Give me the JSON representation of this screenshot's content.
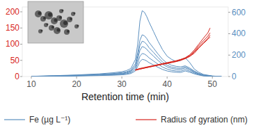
{
  "chart_data": {
    "type": "line",
    "xlabel": "Retention time (min)",
    "xlim": [
      8,
      53.5
    ],
    "xticks": [
      10,
      20,
      30,
      40,
      50
    ],
    "ylim": [
      0,
      215
    ],
    "yticks": [
      0,
      50,
      100,
      150,
      200
    ],
    "y2lim": [
      0,
      650
    ],
    "y2ticks": [
      0,
      200,
      400,
      600
    ],
    "legend": "bottom",
    "series": [
      {
        "name": "Fe (µg L⁻¹)",
        "color": "#5b8fbf",
        "axis": "y2",
        "x": [
          10,
          15,
          20,
          25,
          28,
          30,
          31,
          32,
          33,
          33.5,
          34,
          34.5,
          35,
          35.5,
          36,
          37,
          38,
          39,
          40,
          41,
          42,
          43,
          44,
          45,
          46,
          47,
          48,
          50,
          52
        ],
        "values": [
          2,
          8,
          15,
          25,
          35,
          45,
          55,
          75,
          160,
          300,
          520,
          615,
          600,
          560,
          510,
          420,
          330,
          250,
          190,
          160,
          140,
          150,
          175,
          130,
          70,
          40,
          20,
          5,
          0
        ]
      },
      {
        "color": "#5b8fbf",
        "axis": "y2",
        "x": [
          10,
          15,
          20,
          25,
          28,
          30,
          31,
          32,
          33,
          33.5,
          34,
          34.5,
          35,
          35.5,
          36,
          37,
          38,
          39,
          40,
          41,
          42,
          43,
          44,
          45,
          46,
          47,
          48,
          50,
          52
        ],
        "values": [
          2,
          6,
          12,
          20,
          28,
          36,
          44,
          60,
          120,
          220,
          340,
          390,
          380,
          355,
          320,
          265,
          210,
          160,
          125,
          105,
          95,
          90,
          100,
          80,
          52,
          30,
          15,
          4,
          0
        ]
      },
      {
        "color": "#5b8fbf",
        "axis": "y2",
        "x": [
          10,
          15,
          20,
          25,
          28,
          30,
          31,
          32,
          33,
          33.5,
          34,
          34.5,
          35,
          35.5,
          36,
          37,
          38,
          39,
          40,
          41,
          42,
          43,
          44,
          45,
          46,
          47,
          48,
          50,
          52
        ],
        "values": [
          1,
          5,
          10,
          17,
          24,
          30,
          38,
          52,
          100,
          190,
          290,
          330,
          322,
          300,
          270,
          225,
          178,
          135,
          105,
          88,
          80,
          76,
          90,
          70,
          45,
          26,
          12,
          3,
          0
        ]
      },
      {
        "color": "#5b8fbf",
        "axis": "y2",
        "x": [
          10,
          15,
          20,
          25,
          28,
          30,
          31,
          32,
          33,
          33.5,
          34,
          34.5,
          35,
          35.5,
          36,
          37,
          38,
          39,
          40,
          41,
          42,
          43,
          44,
          45,
          46,
          47,
          48,
          50,
          52
        ],
        "values": [
          1,
          5,
          9,
          15,
          20,
          26,
          32,
          45,
          85,
          160,
          245,
          280,
          272,
          255,
          230,
          190,
          150,
          115,
          90,
          75,
          68,
          65,
          80,
          62,
          40,
          22,
          10,
          3,
          0
        ]
      },
      {
        "color": "#5b8fbf",
        "axis": "y2",
        "x": [
          10,
          15,
          20,
          25,
          28,
          30,
          31,
          32,
          33,
          33.5,
          34,
          34.5,
          35,
          35.5,
          36,
          37,
          38,
          39,
          40,
          41,
          42,
          43,
          44,
          45,
          46,
          47,
          48,
          50,
          52
        ],
        "values": [
          1,
          4,
          7,
          12,
          16,
          21,
          26,
          36,
          68,
          125,
          190,
          215,
          210,
          195,
          175,
          145,
          115,
          88,
          70,
          58,
          52,
          50,
          65,
          50,
          32,
          18,
          8,
          2,
          0
        ]
      },
      {
        "color": "#5b8fbf",
        "axis": "y2",
        "x": [
          10,
          15,
          20,
          25,
          28,
          30,
          31,
          32,
          33,
          33.5,
          34,
          34.5,
          35,
          35.5,
          36,
          37,
          38,
          39,
          40,
          41,
          42,
          43,
          44,
          45,
          46,
          47,
          48,
          50,
          52
        ],
        "values": [
          1,
          3,
          5,
          9,
          12,
          16,
          20,
          28,
          52,
          95,
          140,
          160,
          156,
          145,
          130,
          108,
          86,
          66,
          52,
          44,
          40,
          38,
          52,
          40,
          25,
          14,
          6,
          2,
          0
        ]
      },
      {
        "name": "Radius of gyration (nm)",
        "color": "#d7261e",
        "x": [
          33,
          34,
          35,
          36,
          37,
          38,
          39,
          40,
          41,
          42,
          43,
          44,
          45,
          46,
          47,
          48,
          49,
          49.5
        ],
        "values": [
          20,
          24,
          27,
          30,
          33,
          36,
          39,
          42,
          45,
          48,
          52,
          57,
          65,
          78,
          95,
          110,
          125,
          135
        ]
      },
      {
        "color": "#d7261e",
        "x": [
          33,
          34,
          35,
          36,
          37,
          38,
          39,
          40,
          41,
          42,
          43,
          44,
          45,
          46,
          47,
          48,
          49,
          49.5
        ],
        "values": [
          21,
          25,
          28,
          31,
          34,
          37,
          40,
          43,
          46,
          49,
          53,
          58,
          67,
          82,
          100,
          118,
          135,
          150
        ]
      },
      {
        "color": "#d7261e",
        "x": [
          33,
          34,
          35,
          36,
          37,
          38,
          39,
          40,
          41,
          42,
          43,
          44,
          45,
          46,
          47,
          48,
          49,
          49.5
        ],
        "values": [
          20,
          23,
          26,
          29,
          32,
          35,
          38,
          41,
          44,
          47,
          51,
          56,
          63,
          75,
          90,
          104,
          118,
          128
        ]
      },
      {
        "color": "#d7261e",
        "x": [
          33,
          34,
          35,
          36,
          37,
          38,
          39,
          40,
          41,
          42,
          43,
          44,
          45,
          46,
          47,
          48,
          49,
          49.5
        ],
        "values": [
          19,
          23,
          26,
          29,
          32,
          35,
          38,
          40,
          43,
          46,
          50,
          55,
          62,
          72,
          88,
          102,
          115,
          122
        ]
      }
    ]
  }
}
